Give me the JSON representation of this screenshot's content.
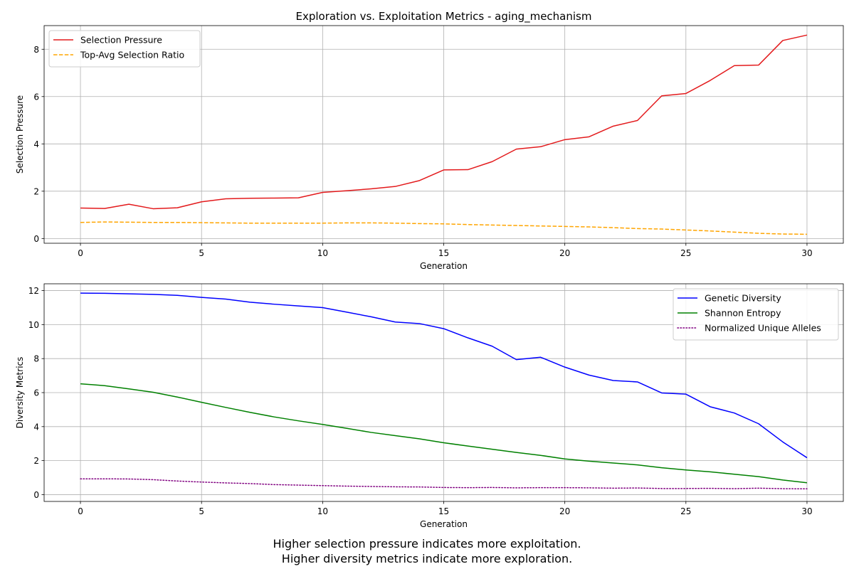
{
  "chart_data": [
    {
      "type": "line",
      "title": "Exploration vs. Exploitation Metrics - aging_mechanism",
      "xlabel": "Generation",
      "ylabel": "Selection Pressure",
      "xlim": [
        -1.5,
        31.5
      ],
      "ylim": [
        -0.2,
        9.0
      ],
      "xticks": [
        0,
        5,
        10,
        15,
        20,
        25,
        30
      ],
      "yticks": [
        0,
        2,
        4,
        6,
        8
      ],
      "grid": true,
      "legend_position": "top-left",
      "x": [
        0,
        1,
        2,
        3,
        4,
        5,
        6,
        7,
        8,
        9,
        10,
        11,
        12,
        13,
        14,
        15,
        16,
        17,
        18,
        19,
        20,
        21,
        22,
        23,
        24,
        25,
        26,
        27,
        28,
        29,
        30
      ],
      "series": [
        {
          "name": "Selection Pressure",
          "color": "#e31a1c",
          "style": "solid",
          "values": [
            1.29,
            1.27,
            1.45,
            1.26,
            1.3,
            1.55,
            1.68,
            1.7,
            1.71,
            1.72,
            1.95,
            2.02,
            2.1,
            2.2,
            2.45,
            2.9,
            2.91,
            3.25,
            3.78,
            3.88,
            4.18,
            4.3,
            4.75,
            4.99,
            6.03,
            6.13,
            6.68,
            7.31,
            7.33,
            8.37,
            8.6
          ]
        },
        {
          "name": "Top-Avg Selection Ratio",
          "color": "#ffa500",
          "style": "dashed",
          "values": [
            0.68,
            0.7,
            0.69,
            0.68,
            0.68,
            0.67,
            0.66,
            0.65,
            0.65,
            0.65,
            0.65,
            0.66,
            0.66,
            0.65,
            0.63,
            0.62,
            0.59,
            0.57,
            0.55,
            0.53,
            0.51,
            0.49,
            0.46,
            0.42,
            0.4,
            0.36,
            0.32,
            0.27,
            0.22,
            0.19,
            0.18
          ]
        }
      ]
    },
    {
      "type": "line",
      "title": "",
      "xlabel": "Generation",
      "ylabel": "Diversity Metrics",
      "xlim": [
        -1.5,
        31.5
      ],
      "ylim": [
        -0.4,
        12.4
      ],
      "xticks": [
        0,
        5,
        10,
        15,
        20,
        25,
        30
      ],
      "yticks": [
        0,
        2,
        4,
        6,
        8,
        10,
        12
      ],
      "grid": true,
      "legend_position": "top-right",
      "x": [
        0,
        1,
        2,
        3,
        4,
        5,
        6,
        7,
        8,
        9,
        10,
        11,
        12,
        13,
        14,
        15,
        16,
        17,
        18,
        19,
        20,
        21,
        22,
        23,
        24,
        25,
        26,
        27,
        28,
        29,
        30
      ],
      "series": [
        {
          "name": "Genetic Diversity",
          "color": "#0000ff",
          "style": "solid",
          "values": [
            11.85,
            11.84,
            11.81,
            11.78,
            11.72,
            11.6,
            11.5,
            11.32,
            11.2,
            11.1,
            11.0,
            10.73,
            10.46,
            10.15,
            10.06,
            9.76,
            9.22,
            8.73,
            7.94,
            8.08,
            7.5,
            7.03,
            6.71,
            6.63,
            5.98,
            5.91,
            5.17,
            4.8,
            4.17,
            3.1,
            2.17
          ]
        },
        {
          "name": "Shannon Entropy",
          "color": "#008000",
          "style": "solid",
          "values": [
            6.52,
            6.41,
            6.22,
            6.02,
            5.74,
            5.43,
            5.13,
            4.84,
            4.57,
            4.34,
            4.13,
            3.9,
            3.66,
            3.47,
            3.28,
            3.05,
            2.86,
            2.67,
            2.48,
            2.31,
            2.1,
            1.97,
            1.86,
            1.75,
            1.58,
            1.45,
            1.34,
            1.2,
            1.06,
            0.86,
            0.7
          ]
        },
        {
          "name": "Normalized Unique Alleles",
          "color": "#800080",
          "style": "dotted",
          "values": [
            0.93,
            0.93,
            0.92,
            0.88,
            0.8,
            0.74,
            0.69,
            0.65,
            0.59,
            0.56,
            0.53,
            0.5,
            0.48,
            0.46,
            0.45,
            0.42,
            0.41,
            0.42,
            0.4,
            0.41,
            0.41,
            0.4,
            0.38,
            0.39,
            0.36,
            0.36,
            0.37,
            0.35,
            0.38,
            0.35,
            0.34
          ]
        }
      ]
    }
  ],
  "caption": {
    "line1": "Higher selection pressure indicates more exploitation.",
    "line2": "Higher diversity metrics indicate more exploration."
  }
}
